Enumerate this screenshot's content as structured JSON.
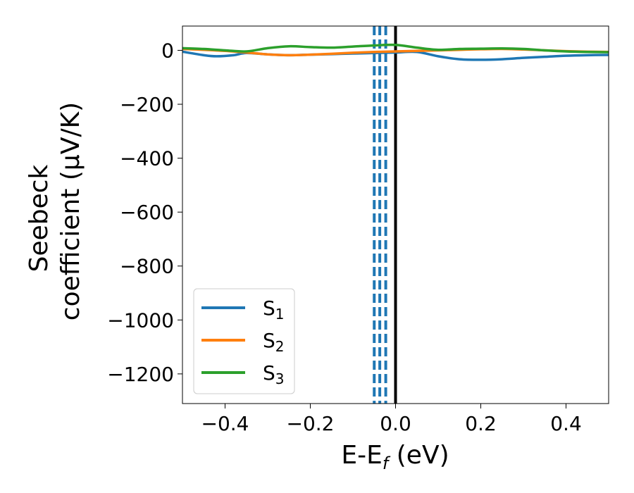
{
  "chart_data": {
    "type": "line",
    "xlabel": "E-E",
    "xlabel_sub": "f",
    "xlabel_unit": " (eV)",
    "ylabel_line1": "Seebeck",
    "ylabel_line2": "coefficient  (μV/K)",
    "xlim": [
      -0.5,
      0.5
    ],
    "ylim": [
      -1310,
      90
    ],
    "x_ticks": [
      -0.4,
      -0.2,
      0.0,
      0.2,
      0.4
    ],
    "x_tick_labels": [
      "−0.4",
      "−0.2",
      "0.0",
      "0.2",
      "0.4"
    ],
    "y_ticks": [
      0,
      -200,
      -400,
      -600,
      -800,
      -1000,
      -1200
    ],
    "y_tick_labels": [
      "0",
      "−200",
      "−400",
      "−600",
      "−800",
      "−1000",
      "−1200"
    ],
    "grid": false,
    "legend_position": "lower-left",
    "series": [
      {
        "name": "S",
        "name_sub": "1",
        "color": "#1f77b4",
        "x": [
          -0.5,
          -0.45,
          -0.42,
          -0.38,
          -0.35,
          -0.3,
          -0.25,
          -0.2,
          -0.15,
          -0.1,
          -0.05,
          0.0,
          0.05,
          0.1,
          0.15,
          0.2,
          0.25,
          0.3,
          0.35,
          0.4,
          0.45,
          0.5
        ],
        "y": [
          -5,
          -18,
          -22,
          -18,
          -10,
          -15,
          -18,
          -16,
          -14,
          -12,
          -10,
          -8,
          -6,
          -22,
          -33,
          -35,
          -33,
          -28,
          -24,
          -20,
          -18,
          -17
        ]
      },
      {
        "name": "S",
        "name_sub": "2",
        "color": "#ff7f0e",
        "x": [
          -0.5,
          -0.45,
          -0.4,
          -0.35,
          -0.3,
          -0.25,
          -0.2,
          -0.15,
          -0.1,
          -0.05,
          0.0,
          0.05,
          0.1,
          0.15,
          0.2,
          0.25,
          0.3,
          0.35,
          0.4,
          0.45,
          0.5
        ],
        "y": [
          5,
          2,
          -2,
          -8,
          -15,
          -18,
          -16,
          -13,
          -9,
          -6,
          -4,
          -2,
          0,
          2,
          4,
          5,
          3,
          0,
          -3,
          -5,
          -6
        ]
      },
      {
        "name": "S",
        "name_sub": "3",
        "color": "#2ca02c",
        "x": [
          -0.5,
          -0.45,
          -0.4,
          -0.35,
          -0.3,
          -0.25,
          -0.2,
          -0.15,
          -0.1,
          -0.05,
          0.0,
          0.05,
          0.1,
          0.15,
          0.2,
          0.25,
          0.3,
          0.35,
          0.4,
          0.45,
          0.5
        ],
        "y": [
          8,
          5,
          0,
          -4,
          8,
          15,
          12,
          10,
          14,
          18,
          20,
          10,
          2,
          5,
          6,
          7,
          5,
          0,
          -4,
          -6,
          -7
        ]
      }
    ],
    "vlines": [
      {
        "x": -0.05,
        "style": "dashed",
        "color": "#1f77b4"
      },
      {
        "x": -0.037,
        "style": "dashed",
        "color": "#1f77b4"
      },
      {
        "x": -0.023,
        "style": "dashed",
        "color": "#1f77b4"
      },
      {
        "x": 0.0,
        "style": "solid",
        "color": "#000000"
      }
    ]
  }
}
